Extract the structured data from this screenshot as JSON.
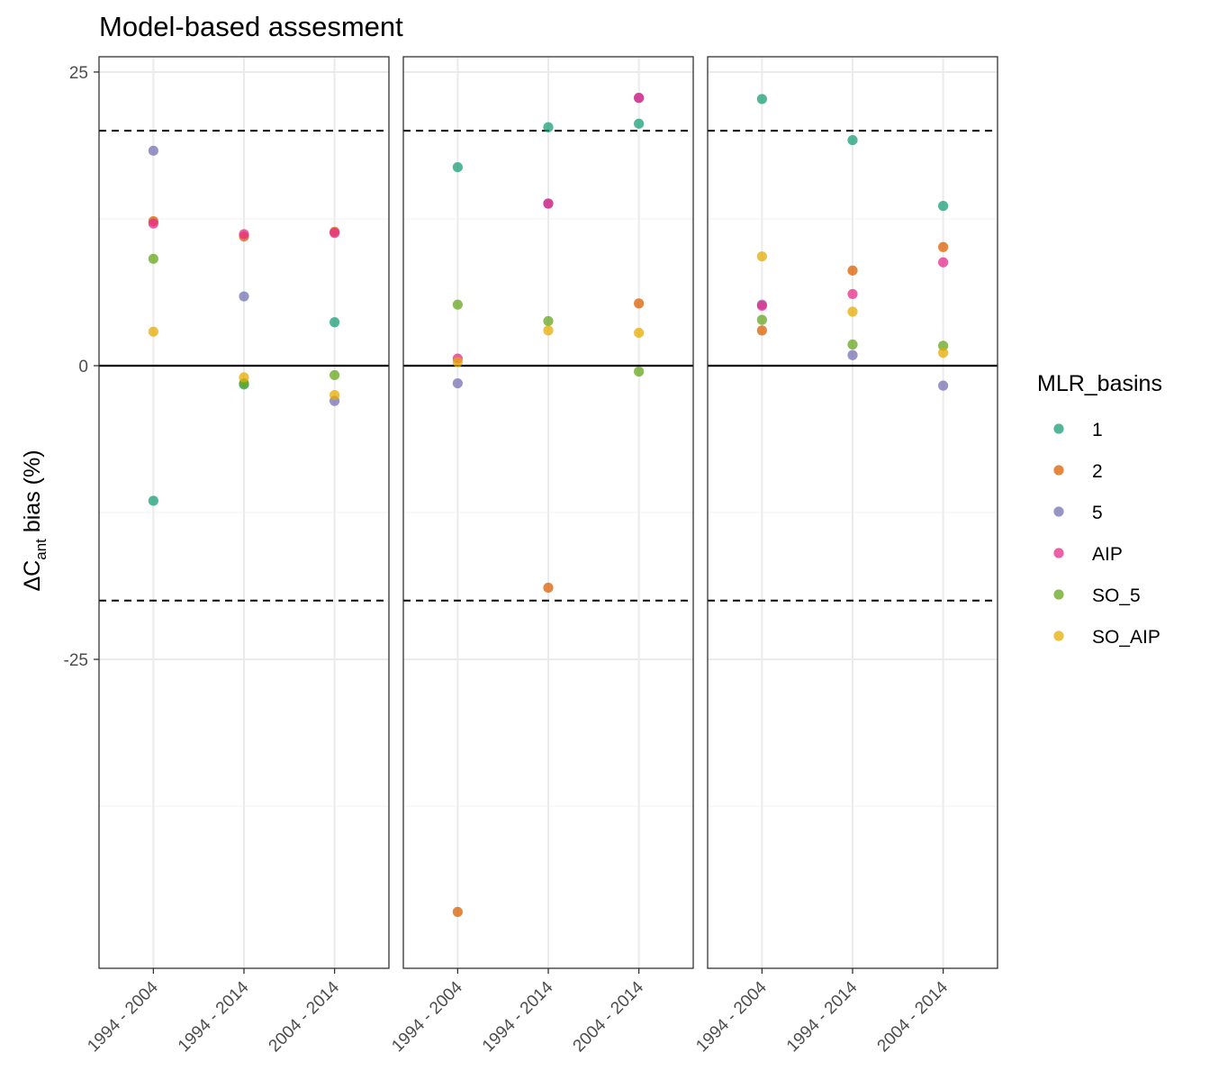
{
  "chart_data": {
    "type": "scatter",
    "title": "Model-based assesment",
    "ylabel": {
      "prefix": "ΔC",
      "subscript": "ant",
      "suffix": " bias (%)"
    },
    "xlabel": "",
    "categories": [
      "1994 - 2004",
      "1994 - 2014",
      "2004 - 2014"
    ],
    "yticks": [
      "25",
      "0",
      "-25"
    ],
    "ytick_values": [
      25,
      0,
      -25
    ],
    "ylim": [
      -51.3,
      26.3
    ],
    "grid": true,
    "reference_lines": {
      "solid": [
        0
      ],
      "dashed": [
        20,
        -20
      ]
    },
    "legend": {
      "title": "MLR_basins",
      "position": "right",
      "items": [
        "1",
        "2",
        "5",
        "AIP",
        "SO_5",
        "SO_AIP"
      ]
    },
    "colors": {
      "1": "#1b9e77",
      "2": "#d95f02",
      "5": "#7570b3",
      "AIP": "#e7298a",
      "SO_5": "#66a61e",
      "SO_AIP": "#e6ab02"
    },
    "panels": [
      {
        "series": [
          {
            "name": "1",
            "values": [
              -11.5,
              -1.6,
              3.7
            ]
          },
          {
            "name": "2",
            "values": [
              12.3,
              11.0,
              11.4
            ]
          },
          {
            "name": "5",
            "values": [
              18.3,
              5.9,
              -3.0
            ]
          },
          {
            "name": "AIP",
            "values": [
              12.1,
              11.2,
              11.3
            ]
          },
          {
            "name": "SO_5",
            "values": [
              9.1,
              -1.5,
              -0.8
            ]
          },
          {
            "name": "SO_AIP",
            "values": [
              2.9,
              -1.0,
              -2.5
            ]
          }
        ]
      },
      {
        "series": [
          {
            "name": "1",
            "values": [
              16.9,
              20.3,
              20.6
            ]
          },
          {
            "name": "2",
            "values": [
              -46.5,
              -18.9,
              5.3
            ]
          },
          {
            "name": "5",
            "values": [
              -1.5,
              13.8,
              22.8
            ]
          },
          {
            "name": "AIP",
            "values": [
              0.6,
              13.8,
              22.8
            ]
          },
          {
            "name": "SO_5",
            "values": [
              5.2,
              3.8,
              -0.5
            ]
          },
          {
            "name": "SO_AIP",
            "values": [
              0.3,
              3.0,
              2.8
            ]
          }
        ]
      },
      {
        "series": [
          {
            "name": "1",
            "values": [
              22.7,
              19.2,
              13.6
            ]
          },
          {
            "name": "2",
            "values": [
              3.0,
              8.1,
              10.1
            ]
          },
          {
            "name": "5",
            "values": [
              5.2,
              0.9,
              -1.7
            ]
          },
          {
            "name": "AIP",
            "values": [
              5.1,
              6.1,
              8.8
            ]
          },
          {
            "name": "SO_5",
            "values": [
              3.9,
              1.8,
              1.7
            ]
          },
          {
            "name": "SO_AIP",
            "values": [
              9.3,
              4.6,
              1.1
            ]
          }
        ]
      }
    ]
  }
}
